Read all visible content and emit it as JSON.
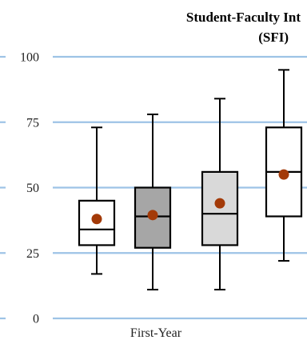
{
  "chart_data": {
    "type": "box",
    "title_line1": "Student-Faculty Int",
    "title_line2": "(SFI)",
    "xlabel": "",
    "ylabel": "",
    "categories": [
      "First-Year"
    ],
    "ylim": [
      0,
      100
    ],
    "yticks": [
      "0",
      "25",
      "50",
      "75",
      "100"
    ],
    "grid": true,
    "grid_color": "#9dc3e6",
    "boxes": [
      {
        "whisker_low": 17,
        "q1": 28,
        "median": 34,
        "q3": 45,
        "whisker_high": 73,
        "mean": 38,
        "fill": "#ffffff"
      },
      {
        "whisker_low": 11,
        "q1": 27,
        "median": 39,
        "q3": 50,
        "whisker_high": 78,
        "mean": 39.5,
        "fill": "#a6a6a6"
      },
      {
        "whisker_low": 11,
        "q1": 28,
        "median": 40,
        "q3": 56,
        "whisker_high": 84,
        "mean": 44,
        "fill": "#d9d9d9"
      },
      {
        "whisker_low": 22,
        "q1": 39,
        "median": 56,
        "q3": 73,
        "whisker_high": 95,
        "mean": 55,
        "fill": "#ffffff"
      }
    ],
    "mean_color": "#a33a08"
  }
}
